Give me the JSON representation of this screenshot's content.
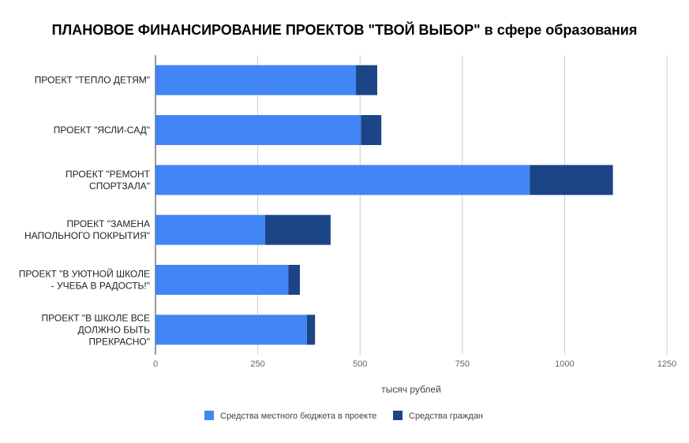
{
  "chart_data": {
    "type": "bar",
    "orientation": "horizontal",
    "stacked": true,
    "title": "ПЛАНОВОЕ ФИНАНСИРОВАНИЕ ПРОЕКТОВ \"ТВОЙ ВЫБОР\" в сфере образования",
    "xlabel": "тысяч рублей",
    "ylabel": "",
    "xlim": [
      0,
      1250
    ],
    "xticks": [
      0,
      250,
      500,
      750,
      1000,
      1250
    ],
    "grid": true,
    "legend_position": "bottom",
    "categories": [
      [
        "ПРОЕКТ \"ТЕПЛО ДЕТЯМ\""
      ],
      [
        "ПРОЕКТ \"ЯСЛИ-САД\""
      ],
      [
        "ПРОЕКТ \"РЕМОНТ",
        "СПОРТЗАЛА\""
      ],
      [
        "ПРОЕКТ \"ЗАМЕНА",
        "НАПОЛЬНОГО ПОКРЫТИЯ\""
      ],
      [
        "ПРОЕКТ \"В УЮТНОЙ ШКОЛЕ",
        "- УЧЕБА В РАДОСТЬ!\""
      ],
      [
        "ПРОЕКТ \"В ШКОЛЕ ВСЕ",
        "ДОЛЖНО БЫТЬ",
        "ПРЕКРАСНО\""
      ]
    ],
    "series": [
      {
        "name": "Средства местного бюджета в проекте",
        "color": "#4285f4",
        "values": [
          490,
          502,
          915,
          268,
          325,
          370
        ]
      },
      {
        "name": "Средства граждан",
        "color": "#1c4587",
        "values": [
          52,
          50,
          203,
          160,
          28,
          20
        ]
      }
    ]
  }
}
